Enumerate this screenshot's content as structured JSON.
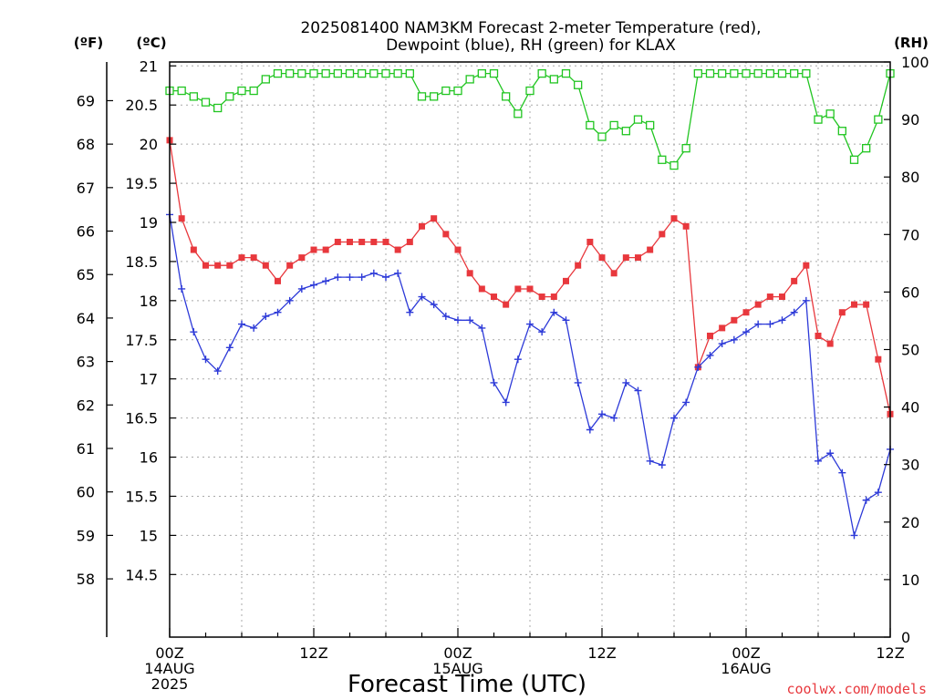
{
  "chart_data": {
    "type": "line",
    "title": "2025081400 NAM3KM Forecast 2-meter Temperature (red),",
    "subtitle": "Dewpoint (blue), RH (green) for KLAX",
    "xlabel": "Forecast Time (UTC)",
    "credit": "coolwx.com/models",
    "axis_headers": {
      "f": "(ºF)",
      "c": "(ºC)",
      "rh": "(RH)"
    },
    "x_tick_labels": [
      {
        "hour": 0,
        "lines": [
          "00Z",
          "14AUG",
          "2025"
        ]
      },
      {
        "hour": 12,
        "lines": [
          "12Z"
        ]
      },
      {
        "hour": 24,
        "lines": [
          "00Z",
          "15AUG"
        ]
      },
      {
        "hour": 36,
        "lines": [
          "12Z"
        ]
      },
      {
        "hour": 48,
        "lines": [
          "00Z",
          "16AUG"
        ]
      },
      {
        "hour": 60,
        "lines": [
          "12Z"
        ]
      }
    ],
    "xlim": [
      0,
      60
    ],
    "ylim_c": [
      13.7,
      21.05
    ],
    "ylim_rh": [
      0,
      100
    ],
    "y_ticks_c": [
      "14.5",
      "15",
      "15.5",
      "16",
      "16.5",
      "17",
      "17.5",
      "18",
      "18.5",
      "19",
      "19.5",
      "20",
      "20.5",
      "21"
    ],
    "y_ticks_f": [
      "58",
      "59",
      "60",
      "61",
      "62",
      "63",
      "64",
      "65",
      "66",
      "67",
      "68",
      "69"
    ],
    "y_ticks_rh": [
      "0",
      "10",
      "20",
      "30",
      "40",
      "50",
      "60",
      "70",
      "80",
      "90",
      "100"
    ],
    "grid": true,
    "series": [
      {
        "name": "Temperature",
        "units": "C",
        "color": "#e8383d",
        "marker": "square-filled",
        "x": [
          0,
          1,
          2,
          3,
          4,
          5,
          6,
          7,
          8,
          9,
          10,
          11,
          12,
          13,
          14,
          15,
          16,
          17,
          18,
          19,
          20,
          21,
          22,
          23,
          24,
          25,
          26,
          27,
          28,
          29,
          30,
          31,
          32,
          33,
          34,
          35,
          36,
          37,
          38,
          39,
          40,
          41,
          42,
          43,
          44,
          45,
          46,
          47,
          48,
          49,
          50,
          51,
          52,
          53,
          54,
          55,
          56,
          57,
          58,
          59,
          60
        ],
        "values": [
          20.05,
          19.05,
          18.65,
          18.45,
          18.45,
          18.45,
          18.55,
          18.55,
          18.45,
          18.25,
          18.45,
          18.55,
          18.65,
          18.65,
          18.75,
          18.75,
          18.75,
          18.75,
          18.75,
          18.65,
          18.75,
          18.95,
          19.05,
          18.85,
          18.65,
          18.35,
          18.15,
          18.05,
          17.95,
          18.15,
          18.15,
          18.05,
          18.05,
          18.25,
          18.45,
          18.75,
          18.55,
          18.35,
          18.55,
          18.55,
          18.65,
          18.85,
          19.05,
          18.95,
          17.15,
          17.55,
          17.65,
          17.75,
          17.85,
          17.95,
          18.05,
          18.05,
          18.25,
          18.45,
          17.55,
          17.45,
          17.85,
          17.95,
          17.95,
          17.25,
          16.55
        ]
      },
      {
        "name": "Dewpoint",
        "units": "C",
        "color": "#2d3ad8",
        "marker": "plus",
        "x": [
          0,
          1,
          2,
          3,
          4,
          5,
          6,
          7,
          8,
          9,
          10,
          11,
          12,
          13,
          14,
          15,
          16,
          17,
          18,
          19,
          20,
          21,
          22,
          23,
          24,
          25,
          26,
          27,
          28,
          29,
          30,
          31,
          32,
          33,
          34,
          35,
          36,
          37,
          38,
          39,
          40,
          41,
          42,
          43,
          44,
          45,
          46,
          47,
          48,
          49,
          50,
          51,
          52,
          53,
          54,
          55,
          56,
          57,
          58,
          59,
          60
        ],
        "values": [
          19.1,
          18.15,
          17.6,
          17.25,
          17.1,
          17.4,
          17.7,
          17.65,
          17.8,
          17.85,
          18.0,
          18.15,
          18.2,
          18.25,
          18.3,
          18.3,
          18.3,
          18.35,
          18.3,
          18.35,
          17.85,
          18.05,
          17.95,
          17.8,
          17.75,
          17.75,
          17.65,
          16.95,
          16.7,
          17.25,
          17.7,
          17.6,
          17.85,
          17.75,
          16.95,
          16.35,
          16.55,
          16.5,
          16.95,
          16.85,
          15.95,
          15.9,
          16.5,
          16.7,
          17.15,
          17.3,
          17.45,
          17.5,
          17.6,
          17.7,
          17.7,
          17.75,
          17.85,
          18.0,
          15.95,
          16.05,
          15.8,
          15.0,
          15.45,
          15.55,
          16.1
        ]
      },
      {
        "name": "RH",
        "units": "%",
        "color": "#21c521",
        "marker": "square-open",
        "x": [
          0,
          1,
          2,
          3,
          4,
          5,
          6,
          7,
          8,
          9,
          10,
          11,
          12,
          13,
          14,
          15,
          16,
          17,
          18,
          19,
          20,
          21,
          22,
          23,
          24,
          25,
          26,
          27,
          28,
          29,
          30,
          31,
          32,
          33,
          34,
          35,
          36,
          37,
          38,
          39,
          40,
          41,
          42,
          43,
          44,
          45,
          46,
          47,
          48,
          49,
          50,
          51,
          52,
          53,
          54,
          55,
          56,
          57,
          58,
          59,
          60
        ],
        "values": [
          95,
          95,
          94,
          93,
          92,
          94,
          95,
          95,
          97,
          98,
          98,
          98,
          98,
          98,
          98,
          98,
          98,
          98,
          98,
          98,
          98,
          94,
          94,
          95,
          95,
          97,
          98,
          98,
          94,
          91,
          95,
          98,
          97,
          98,
          96,
          89,
          87,
          89,
          88,
          90,
          89,
          83,
          82,
          85,
          98,
          98,
          98,
          98,
          98,
          98,
          98,
          98,
          98,
          98,
          90,
          91,
          88,
          83,
          85,
          90,
          98
        ]
      }
    ]
  }
}
